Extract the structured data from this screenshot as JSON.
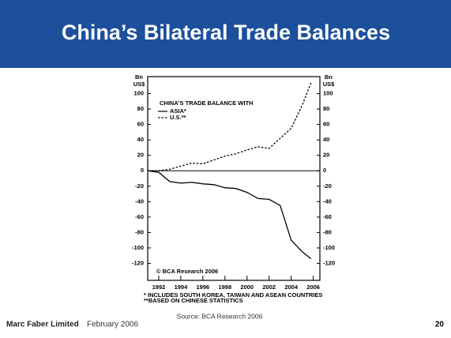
{
  "header": {
    "title": "China’s Bilateral Trade Balances"
  },
  "chart_data": {
    "type": "line",
    "ylabel_lines": [
      "Bn",
      "US$"
    ],
    "y2label_lines": [
      "Bn",
      "US$"
    ],
    "legend_title": "CHINA'S TRADE BALANCE WITH",
    "x": [
      1991,
      1992,
      1993,
      1994,
      1995,
      1996,
      1997,
      1998,
      1999,
      2000,
      2001,
      2002,
      2003,
      2004,
      2005,
      2005.8
    ],
    "series": [
      {
        "name": "ASIA*",
        "color": "#000000",
        "dash": false,
        "values": [
          0,
          -2,
          -14,
          -16,
          -15,
          -17,
          -18,
          -22,
          -23,
          -28,
          -36,
          -37,
          -45,
          -90,
          -105,
          -114
        ]
      },
      {
        "name": "U.S.**",
        "color": "#000000",
        "dash": true,
        "values": [
          0,
          0,
          2,
          6,
          10,
          9,
          14,
          19,
          22,
          27,
          31,
          29,
          42,
          55,
          85,
          114
        ]
      }
    ],
    "xlim": [
      1991,
      2006.6
    ],
    "xticks": [
      1992,
      1994,
      1996,
      1998,
      2000,
      2002,
      2004,
      2006
    ],
    "ylim": [
      -142,
      122
    ],
    "yticks": [
      -120,
      -100,
      -80,
      -60,
      -40,
      -20,
      0,
      20,
      40,
      60,
      80,
      100
    ],
    "y2lim": [
      -142,
      122
    ],
    "y2ticks": [
      -120,
      -100,
      -80,
      -60,
      -40,
      -20,
      0,
      20,
      40,
      60,
      80,
      100
    ],
    "copyright": "© BCA Research 2006",
    "footnotes": [
      "* INCLUDES SOUTH KOREA, TAIWAN AND ASEAN COUNTRIES",
      "**BASED ON CHINESE STATISTICS"
    ]
  },
  "source": "Source: BCA Research 2006",
  "footer": {
    "company": "Marc Faber Limited",
    "date": "February 2006",
    "page": "20"
  }
}
